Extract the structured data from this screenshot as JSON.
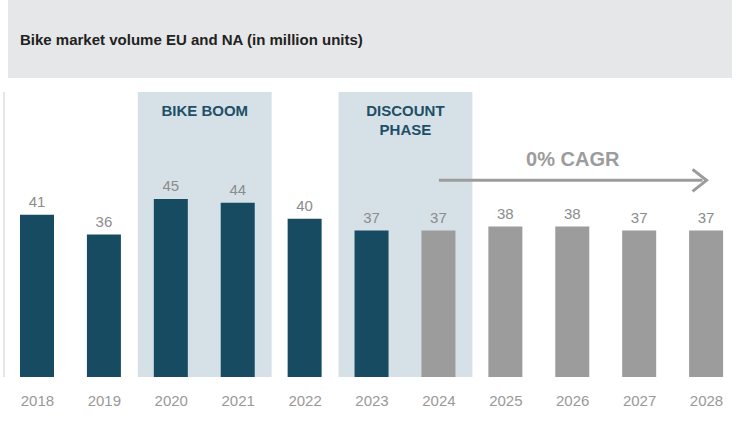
{
  "chart_data": {
    "type": "bar",
    "title": "Bike market volume EU and NA (in million units)",
    "categories": [
      "2018",
      "2019",
      "2020",
      "2021",
      "2022",
      "2023",
      "2024",
      "2025",
      "2026",
      "2027",
      "2028"
    ],
    "values": [
      41,
      36,
      45,
      44,
      40,
      37,
      37,
      38,
      38,
      37,
      37
    ],
    "colors": [
      "#164b62",
      "#164b62",
      "#164b62",
      "#164b62",
      "#164b62",
      "#164b62",
      "#9c9c9c",
      "#9c9c9c",
      "#9c9c9c",
      "#9c9c9c",
      "#9c9c9c"
    ],
    "ylim": [
      0,
      72
    ],
    "tick_labels": "x",
    "data_labels": true,
    "grid": false,
    "shaded_regions": [
      {
        "text": "BIKE BOOM",
        "from": "2020",
        "to": "2021"
      },
      {
        "text": "DISCOUNT PHASE",
        "from": "2023",
        "to": "2024"
      }
    ],
    "arrow_annotations": [
      {
        "text": "0% CAGR",
        "from": "2024",
        "to": "2028"
      }
    ]
  }
}
